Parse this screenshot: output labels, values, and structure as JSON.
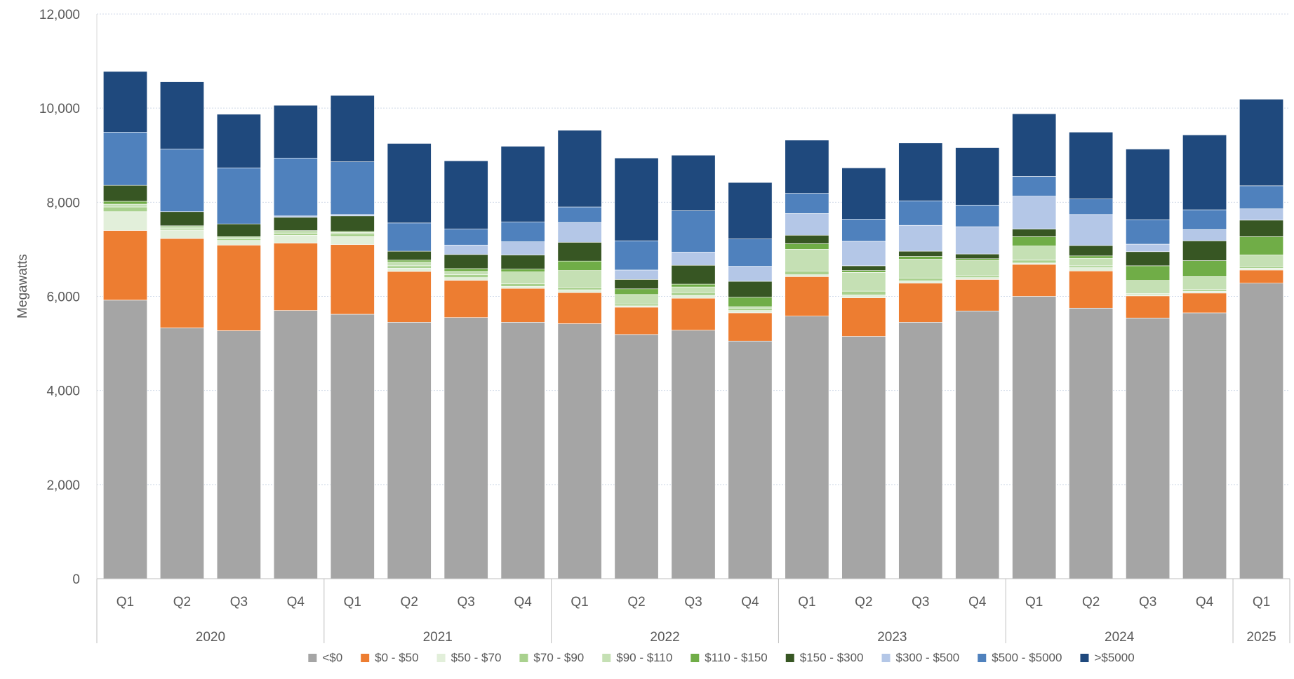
{
  "chart_data": {
    "type": "bar",
    "stacked": true,
    "title": "",
    "xlabel": "",
    "ylabel": "Megawatts",
    "ylim": [
      0,
      12000
    ],
    "yticks": [
      "0",
      "2,000",
      "4,000",
      "6,000",
      "8,000",
      "10,000",
      "12,000"
    ],
    "ytick_values": [
      0,
      2000,
      4000,
      6000,
      8000,
      10000,
      12000
    ],
    "grid": true,
    "legend_position": "bottom",
    "categories": [
      "Q1",
      "Q2",
      "Q3",
      "Q4",
      "Q1",
      "Q2",
      "Q3",
      "Q4",
      "Q1",
      "Q2",
      "Q3",
      "Q4",
      "Q1",
      "Q2",
      "Q3",
      "Q4",
      "Q1",
      "Q2",
      "Q3",
      "Q4",
      "Q1"
    ],
    "groups": [
      {
        "label": "2020",
        "count": 4
      },
      {
        "label": "2021",
        "count": 4
      },
      {
        "label": "2022",
        "count": 4
      },
      {
        "label": "2023",
        "count": 4
      },
      {
        "label": "2024",
        "count": 4
      },
      {
        "label": "2025",
        "count": 1
      }
    ],
    "series": [
      {
        "name": "<$0",
        "color": "#a5a5a5",
        "values": [
          5920,
          5330,
          5270,
          5700,
          5620,
          5450,
          5550,
          5450,
          5420,
          5190,
          5280,
          5050,
          5580,
          5150,
          5450,
          5690,
          6000,
          5750,
          5540,
          5650,
          6280
        ]
      },
      {
        "name": "$0 - $50",
        "color": "#ed7d31",
        "values": [
          1480,
          1900,
          1820,
          1430,
          1480,
          1080,
          790,
          720,
          660,
          580,
          680,
          600,
          840,
          820,
          830,
          670,
          680,
          790,
          470,
          420,
          280
        ]
      },
      {
        "name": "$50 - $70",
        "color": "#e2efda",
        "values": [
          400,
          180,
          100,
          170,
          170,
          70,
          60,
          40,
          60,
          30,
          60,
          50,
          40,
          60,
          50,
          40,
          30,
          70,
          30,
          40,
          40
        ]
      },
      {
        "name": "$70 - $90",
        "color": "#a9d18e",
        "values": [
          100,
          30,
          30,
          40,
          60,
          50,
          60,
          60,
          50,
          40,
          60,
          50,
          80,
          80,
          60,
          40,
          60,
          40,
          20,
          40,
          40
        ]
      },
      {
        "name": "$90 - $110",
        "color": "#c5e0b4",
        "values": [
          60,
          40,
          30,
          40,
          30,
          80,
          70,
          250,
          360,
          200,
          120,
          30,
          460,
          400,
          400,
          320,
          300,
          160,
          280,
          270,
          240
        ]
      },
      {
        "name": "$110 - $150",
        "color": "#70ad47",
        "values": [
          60,
          20,
          20,
          20,
          20,
          40,
          60,
          60,
          200,
          120,
          60,
          200,
          120,
          40,
          60,
          40,
          200,
          50,
          310,
          340,
          390
        ]
      },
      {
        "name": "$150 - $300",
        "color": "#375623",
        "values": [
          340,
          300,
          270,
          280,
          330,
          190,
          300,
          300,
          400,
          200,
          400,
          340,
          180,
          100,
          110,
          100,
          160,
          220,
          300,
          420,
          350
        ]
      },
      {
        "name": "$300 - $500",
        "color": "#b4c7e7",
        "values": [
          0,
          0,
          0,
          30,
          30,
          0,
          200,
          280,
          420,
          200,
          280,
          320,
          460,
          520,
          550,
          580,
          700,
          660,
          160,
          240,
          240
        ]
      },
      {
        "name": "$500 - $5000",
        "color": "#4f81bd",
        "values": [
          1130,
          1330,
          1190,
          1230,
          1120,
          600,
          340,
          420,
          330,
          620,
          880,
          580,
          430,
          470,
          520,
          460,
          420,
          330,
          520,
          420,
          490
        ]
      },
      {
        "name": ">$5000",
        "color": "#1f497d",
        "values": [
          1290,
          1430,
          1140,
          1120,
          1410,
          1690,
          1450,
          1610,
          1630,
          1760,
          1180,
          1200,
          1130,
          1090,
          1230,
          1220,
          1330,
          1420,
          1500,
          1590,
          1840
        ]
      }
    ]
  }
}
